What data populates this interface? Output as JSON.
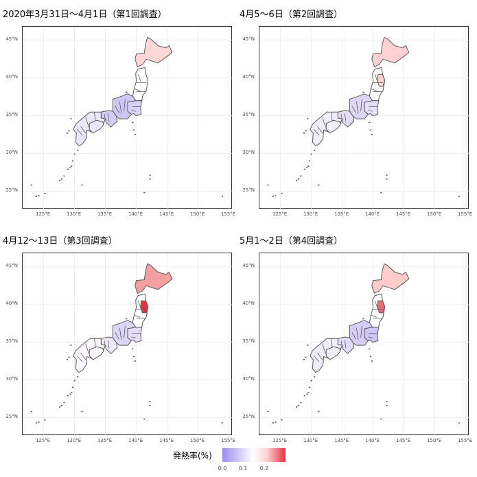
{
  "panels": [
    {
      "title": "2020年3月31日〜4月1日（第1回調査）"
    },
    {
      "title": "4月5〜6日（第2回調査）"
    },
    {
      "title": "4月12〜13日（第3回調査）"
    },
    {
      "title": "5月1〜2日（第4回調査）"
    }
  ],
  "axes": {
    "x_ticks": [
      "125°E",
      "130°E",
      "135°E",
      "140°E",
      "145°E",
      "150°E",
      "155°E"
    ],
    "y_ticks": [
      "45°N",
      "40°N",
      "35°N",
      "30°N",
      "25°N"
    ]
  },
  "legend": {
    "title": "発熱率(%)",
    "ticks": [
      "0.0",
      "0.1",
      "0.2"
    ],
    "colors": {
      "low": "#9b8cf2",
      "mid": "#ffffff",
      "high": "#e8323e"
    }
  },
  "map_colors": {
    "panel1": {
      "hokkaido": "#ffd7d7",
      "tohoku": "#ffffff",
      "kanto": "#d9d2f7",
      "chubu": "#cfc6f4",
      "kinki": "#d4ccf5",
      "west": "#ece8fb"
    },
    "panel2": {
      "hokkaido": "#ffd0d0",
      "tohoku": "#ffffff",
      "iwate": "#ffd0d0",
      "kanto": "#e5e0f9",
      "chubu": "#ddd6f7",
      "kinki": "#e2dcf8",
      "west": "#f2effc"
    },
    "panel3": {
      "hokkaido": "#f4a0a0",
      "tohoku": "#ffffff",
      "iwate": "#e8323e",
      "kanto": "#e3ddf8",
      "chubu": "#dcd5f7",
      "kinki": "#efeafb",
      "west": "#faf8fe"
    },
    "panel4": {
      "hokkaido": "#ffcccc",
      "tohoku": "#ffffff",
      "iwate": "#ee6a72",
      "kanto": "#cdc5f5",
      "chubu": "#d6cef6",
      "kinki": "#e1dbf8",
      "west": "#f0edfb"
    }
  }
}
